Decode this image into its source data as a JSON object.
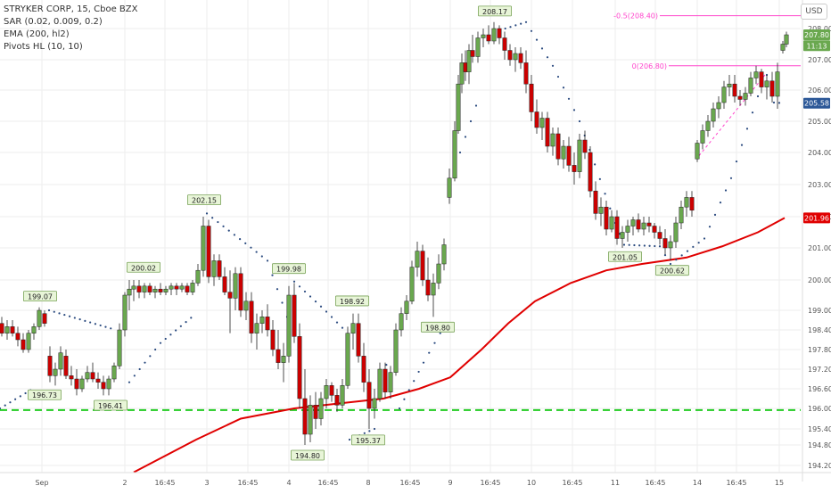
{
  "legend": {
    "symbol": "STRYKER CORP, 15, Cboe BZX",
    "sar": "SAR (0.02, 0.009, 0.2)",
    "ema": "EMA (200, hl2)",
    "pivots": "Pivots HL (10, 10)"
  },
  "currency_button": "USD",
  "colors": {
    "up": "#6aa84f",
    "down": "#cc0000",
    "ema": "#e00000",
    "sar": "#2a4a7f",
    "support": "#22cc22",
    "fib": "#ff44cc",
    "axis_text": "#555555",
    "grid": "#eeeeee"
  },
  "chart_data": {
    "type": "candlestick",
    "y_axis": {
      "ticks": [
        "194.20",
        "194.80",
        "195.40",
        "196.00",
        "196.60",
        "197.20",
        "197.80",
        "198.40",
        "199.00",
        "200.00",
        "201.00",
        "202.00",
        "203.00",
        "204.00",
        "205.00",
        "206.00",
        "207.00",
        "208.00"
      ],
      "ylim": [
        194.0,
        208.5
      ]
    },
    "x_axis": {
      "ticks": [
        "Sep",
        "2",
        "16:45",
        "3",
        "16:45",
        "4",
        "16:45",
        "8",
        "16:45",
        "9",
        "16:45",
        "10",
        "16:45",
        "11",
        "16:45",
        "14",
        "16:45",
        "15"
      ]
    },
    "price_badges": [
      {
        "label": "207.80",
        "value": 207.8,
        "type": "last"
      },
      {
        "label": "11:13",
        "value": 207.45,
        "type": "time"
      },
      {
        "label": "205.58",
        "value": 205.58,
        "type": "blue"
      },
      {
        "label": "201.96",
        "value": 201.96,
        "type": "ema"
      }
    ],
    "pivot_highs": [
      {
        "label": "199.07",
        "value": 199.07
      },
      {
        "label": "200.02",
        "value": 200.02
      },
      {
        "label": "202.15",
        "value": 202.15
      },
      {
        "label": "199.98",
        "value": 199.98
      },
      {
        "label": "198.92",
        "value": 198.92
      },
      {
        "label": "208.17",
        "value": 208.17
      }
    ],
    "pivot_lows": [
      {
        "label": "196.73",
        "value": 196.73
      },
      {
        "label": "196.41",
        "value": 196.41
      },
      {
        "label": "194.80",
        "value": 194.8
      },
      {
        "label": "195.37",
        "value": 195.37
      },
      {
        "label": "198.80",
        "value": 198.8
      },
      {
        "label": "201.05",
        "value": 201.05
      },
      {
        "label": "200.62",
        "value": 200.62
      }
    ],
    "fib_lines": [
      {
        "label": "-0.5(208.40)",
        "value": 208.4
      },
      {
        "label": "0(206.80)",
        "value": 206.8
      }
    ],
    "support_level": 195.95,
    "ema_series": [
      [
        150,
        194.0
      ],
      [
        220,
        195.0
      ],
      [
        270,
        195.7
      ],
      [
        330,
        196.0
      ],
      [
        380,
        196.15
      ],
      [
        430,
        196.3
      ],
      [
        470,
        196.6
      ],
      [
        505,
        196.95
      ],
      [
        540,
        197.8
      ],
      [
        570,
        198.6
      ],
      [
        600,
        199.3
      ],
      [
        640,
        199.9
      ],
      [
        680,
        200.3
      ],
      [
        720,
        200.5
      ],
      [
        770,
        200.7
      ],
      [
        810,
        201.05
      ],
      [
        850,
        201.5
      ],
      [
        880,
        201.96
      ]
    ],
    "sar_series": [
      [
        0,
        196.0
      ],
      [
        40,
        196.65
      ],
      [
        55,
        199.0
      ],
      [
        130,
        198.4
      ],
      [
        145,
        196.8
      ],
      [
        180,
        198.0
      ],
      [
        220,
        198.9
      ],
      [
        232,
        202.1
      ],
      [
        300,
        200.6
      ],
      [
        322,
        198.8
      ],
      [
        330,
        199.95
      ],
      [
        390,
        198.3
      ],
      [
        392,
        195.0
      ],
      [
        420,
        195.4
      ],
      [
        440,
        198.3
      ],
      [
        448,
        196.0
      ],
      [
        475,
        197.4
      ],
      [
        500,
        198.6
      ],
      [
        510,
        203.5
      ],
      [
        540,
        206.0
      ],
      [
        555,
        207.9
      ],
      [
        590,
        208.2
      ],
      [
        620,
        206.8
      ],
      [
        650,
        205.0
      ],
      [
        690,
        201.8
      ],
      [
        700,
        201.1
      ],
      [
        740,
        201.05
      ],
      [
        752,
        200.5
      ],
      [
        790,
        201.3
      ],
      [
        820,
        203.2
      ],
      [
        850,
        205.8
      ],
      [
        860,
        206.5
      ],
      [
        868,
        205.6
      ],
      [
        880,
        205.58
      ]
    ],
    "candles": [
      [
        2,
        198.6,
        198.8,
        198.2,
        198.3
      ],
      [
        8,
        198.3,
        198.7,
        198.1,
        198.5
      ],
      [
        14,
        198.5,
        198.7,
        198.2,
        198.3
      ],
      [
        20,
        198.3,
        198.5,
        197.9,
        198.1
      ],
      [
        26,
        198.1,
        198.3,
        197.7,
        197.8
      ],
      [
        32,
        197.8,
        198.4,
        197.7,
        198.3
      ],
      [
        38,
        198.3,
        198.6,
        198.1,
        198.5
      ],
      [
        44,
        198.5,
        199.1,
        198.4,
        199.0
      ],
      [
        50,
        198.9,
        199.0,
        198.5,
        198.6
      ],
      [
        56,
        197.6,
        197.9,
        196.8,
        197.0
      ],
      [
        62,
        197.0,
        197.4,
        196.7,
        197.2
      ],
      [
        68,
        197.2,
        197.9,
        197.0,
        197.7
      ],
      [
        74,
        197.6,
        197.8,
        196.9,
        197.0
      ],
      [
        80,
        197.0,
        197.3,
        196.7,
        196.9
      ],
      [
        86,
        196.9,
        197.2,
        196.4,
        196.6
      ],
      [
        92,
        196.6,
        197.0,
        196.5,
        196.9
      ],
      [
        98,
        196.9,
        197.3,
        196.8,
        197.1
      ],
      [
        104,
        197.1,
        197.4,
        196.8,
        196.9
      ],
      [
        110,
        196.9,
        197.1,
        196.6,
        196.8
      ],
      [
        116,
        196.8,
        197.0,
        196.4,
        196.6
      ],
      [
        122,
        196.6,
        197.0,
        196.4,
        196.9
      ],
      [
        128,
        196.9,
        197.4,
        196.8,
        197.3
      ],
      [
        134,
        197.3,
        198.6,
        197.2,
        198.4
      ],
      [
        140,
        198.4,
        199.6,
        198.2,
        199.5
      ],
      [
        145,
        199.5,
        200.0,
        199.0,
        199.7
      ],
      [
        150,
        199.7,
        200.0,
        199.3,
        199.8
      ],
      [
        156,
        199.8,
        200.0,
        199.4,
        199.6
      ],
      [
        162,
        199.6,
        199.9,
        199.4,
        199.8
      ],
      [
        168,
        199.8,
        199.9,
        199.5,
        199.6
      ],
      [
        174,
        199.6,
        199.8,
        199.4,
        199.7
      ],
      [
        180,
        199.7,
        199.9,
        199.5,
        199.6
      ],
      [
        186,
        199.6,
        199.8,
        199.5,
        199.7
      ],
      [
        192,
        199.7,
        199.9,
        199.5,
        199.8
      ],
      [
        198,
        199.8,
        199.9,
        199.5,
        199.7
      ],
      [
        204,
        199.7,
        199.9,
        199.6,
        199.8
      ],
      [
        210,
        199.8,
        199.9,
        199.5,
        199.6
      ],
      [
        216,
        199.6,
        200.0,
        199.5,
        199.9
      ],
      [
        222,
        199.9,
        200.5,
        199.8,
        200.3
      ],
      [
        228,
        200.3,
        202.0,
        200.1,
        201.7
      ],
      [
        234,
        201.7,
        201.9,
        199.9,
        200.1
      ],
      [
        240,
        200.1,
        200.8,
        199.8,
        200.6
      ],
      [
        246,
        200.6,
        200.8,
        200.0,
        200.1
      ],
      [
        252,
        200.1,
        200.4,
        199.5,
        199.6
      ],
      [
        258,
        199.6,
        200.3,
        198.3,
        199.4
      ],
      [
        264,
        199.4,
        200.4,
        199.0,
        200.2
      ],
      [
        270,
        200.2,
        200.4,
        198.8,
        199.0
      ],
      [
        276,
        199.0,
        199.6,
        198.7,
        199.3
      ],
      [
        282,
        199.3,
        199.6,
        198.0,
        198.3
      ],
      [
        288,
        198.3,
        198.9,
        197.8,
        198.6
      ],
      [
        294,
        198.6,
        199.0,
        198.3,
        198.8
      ],
      [
        300,
        198.8,
        199.2,
        198.2,
        198.4
      ],
      [
        306,
        198.4,
        198.7,
        197.6,
        197.8
      ],
      [
        312,
        197.8,
        198.4,
        197.2,
        197.4
      ],
      [
        318,
        197.4,
        198.0,
        196.8,
        197.6
      ],
      [
        324,
        197.6,
        199.8,
        197.4,
        199.5
      ],
      [
        330,
        199.5,
        199.9,
        198.0,
        198.2
      ],
      [
        336,
        198.2,
        198.6,
        196.0,
        196.3
      ],
      [
        342,
        196.3,
        197.2,
        194.8,
        195.2
      ],
      [
        348,
        195.2,
        196.4,
        194.9,
        196.1
      ],
      [
        354,
        196.1,
        196.5,
        195.4,
        195.7
      ],
      [
        360,
        195.7,
        196.5,
        195.5,
        196.3
      ],
      [
        366,
        196.3,
        196.9,
        196.0,
        196.7
      ],
      [
        372,
        196.7,
        196.8,
        196.2,
        196.4
      ],
      [
        378,
        196.4,
        196.6,
        195.9,
        196.1
      ],
      [
        384,
        196.1,
        196.9,
        196.0,
        196.7
      ],
      [
        390,
        196.7,
        198.5,
        196.6,
        198.3
      ],
      [
        396,
        198.3,
        198.9,
        197.8,
        198.6
      ],
      [
        402,
        198.6,
        198.9,
        197.4,
        197.6
      ],
      [
        408,
        197.6,
        198.0,
        196.5,
        196.8
      ],
      [
        414,
        196.8,
        197.2,
        195.4,
        196.0
      ],
      [
        420,
        196.0,
        196.6,
        195.7,
        196.3
      ],
      [
        426,
        196.3,
        197.4,
        196.2,
        197.2
      ],
      [
        432,
        197.2,
        197.4,
        196.3,
        196.5
      ],
      [
        438,
        196.5,
        197.3,
        196.3,
        197.1
      ],
      [
        444,
        197.1,
        198.6,
        197.0,
        198.4
      ],
      [
        450,
        198.4,
        199.1,
        198.2,
        198.9
      ],
      [
        456,
        198.9,
        199.5,
        198.7,
        199.3
      ],
      [
        462,
        199.3,
        200.6,
        199.2,
        200.4
      ],
      [
        468,
        200.4,
        201.2,
        200.1,
        200.9
      ],
      [
        474,
        200.9,
        201.1,
        199.8,
        200.0
      ],
      [
        480,
        200.0,
        200.7,
        199.3,
        199.5
      ],
      [
        486,
        199.5,
        200.2,
        198.8,
        199.9
      ],
      [
        492,
        199.9,
        200.8,
        199.7,
        200.5
      ],
      [
        498,
        200.5,
        201.3,
        200.3,
        201.1
      ],
      [
        504,
        202.6,
        203.5,
        202.4,
        203.2
      ],
      [
        510,
        203.2,
        205.0,
        203.1,
        204.7
      ],
      [
        514,
        204.7,
        206.5,
        204.6,
        206.2
      ],
      [
        518,
        206.2,
        207.2,
        205.9,
        206.9
      ],
      [
        522,
        206.9,
        207.3,
        206.3,
        206.6
      ],
      [
        526,
        206.6,
        207.5,
        206.2,
        207.3
      ],
      [
        530,
        207.3,
        207.8,
        206.9,
        207.1
      ],
      [
        536,
        207.1,
        207.9,
        206.9,
        207.7
      ],
      [
        542,
        207.7,
        208.0,
        207.4,
        207.8
      ],
      [
        548,
        207.8,
        208.1,
        207.5,
        207.6
      ],
      [
        554,
        207.6,
        208.2,
        207.5,
        208.0
      ],
      [
        560,
        208.0,
        208.1,
        207.5,
        207.7
      ],
      [
        566,
        207.7,
        207.9,
        207.0,
        207.3
      ],
      [
        572,
        207.3,
        207.5,
        206.8,
        207.0
      ],
      [
        578,
        207.0,
        207.4,
        206.6,
        207.2
      ],
      [
        584,
        207.2,
        207.4,
        206.7,
        206.9
      ],
      [
        590,
        206.9,
        207.3,
        205.9,
        206.2
      ],
      [
        596,
        206.2,
        206.5,
        205.0,
        205.3
      ],
      [
        602,
        205.3,
        205.7,
        204.6,
        204.8
      ],
      [
        608,
        204.8,
        205.3,
        204.4,
        205.1
      ],
      [
        614,
        205.1,
        205.3,
        204.0,
        204.2
      ],
      [
        620,
        204.2,
        204.8,
        203.9,
        204.6
      ],
      [
        626,
        204.6,
        204.8,
        203.6,
        203.8
      ],
      [
        632,
        203.8,
        204.4,
        203.5,
        204.2
      ],
      [
        638,
        204.2,
        204.5,
        203.4,
        203.6
      ],
      [
        644,
        203.6,
        204.0,
        203.0,
        203.4
      ],
      [
        650,
        203.4,
        204.6,
        203.2,
        204.4
      ],
      [
        656,
        204.4,
        204.7,
        203.8,
        204.0
      ],
      [
        662,
        204.0,
        204.2,
        202.6,
        202.8
      ],
      [
        668,
        202.8,
        203.1,
        201.9,
        202.1
      ],
      [
        674,
        202.1,
        202.6,
        201.7,
        202.3
      ],
      [
        680,
        202.3,
        202.5,
        201.4,
        201.6
      ],
      [
        686,
        201.6,
        202.2,
        201.5,
        202.0
      ],
      [
        692,
        202.0,
        202.2,
        201.1,
        201.3
      ],
      [
        698,
        201.3,
        201.7,
        201.0,
        201.5
      ],
      [
        704,
        201.5,
        201.9,
        201.2,
        201.7
      ],
      [
        710,
        201.7,
        202.0,
        201.4,
        201.9
      ],
      [
        716,
        201.9,
        202.1,
        201.5,
        201.6
      ],
      [
        722,
        201.6,
        202.0,
        201.4,
        201.8
      ],
      [
        728,
        201.8,
        202.0,
        201.5,
        201.7
      ],
      [
        734,
        201.7,
        201.8,
        201.3,
        201.5
      ],
      [
        740,
        201.5,
        201.7,
        201.1,
        201.3
      ],
      [
        746,
        201.3,
        201.6,
        200.8,
        201.0
      ],
      [
        752,
        201.0,
        201.4,
        200.6,
        201.2
      ],
      [
        758,
        201.2,
        202.0,
        201.0,
        201.8
      ],
      [
        764,
        201.8,
        202.5,
        201.6,
        202.3
      ],
      [
        770,
        202.3,
        202.8,
        202.0,
        202.6
      ],
      [
        776,
        202.6,
        202.8,
        202.0,
        202.2
      ],
      [
        782,
        203.8,
        204.4,
        203.7,
        204.3
      ],
      [
        788,
        204.3,
        204.9,
        204.1,
        204.7
      ],
      [
        794,
        204.7,
        205.2,
        204.5,
        205.0
      ],
      [
        800,
        205.0,
        205.6,
        204.8,
        205.4
      ],
      [
        806,
        205.4,
        205.8,
        205.1,
        205.6
      ],
      [
        812,
        205.6,
        206.3,
        205.4,
        206.1
      ],
      [
        818,
        206.1,
        206.5,
        205.8,
        206.2
      ],
      [
        824,
        206.2,
        206.5,
        205.6,
        205.8
      ],
      [
        830,
        205.8,
        206.0,
        205.5,
        205.7
      ],
      [
        836,
        205.7,
        206.1,
        205.5,
        205.9
      ],
      [
        842,
        205.9,
        206.6,
        205.8,
        206.4
      ],
      [
        848,
        206.4,
        206.8,
        206.2,
        206.6
      ],
      [
        854,
        206.6,
        206.7,
        205.9,
        206.1
      ],
      [
        860,
        206.1,
        206.5,
        205.7,
        206.3
      ],
      [
        866,
        206.3,
        206.6,
        205.6,
        205.8
      ],
      [
        872,
        205.8,
        206.9,
        205.4,
        206.6
      ],
      [
        878,
        207.3,
        207.6,
        207.2,
        207.5
      ],
      [
        882,
        207.5,
        207.9,
        207.4,
        207.8
      ]
    ]
  }
}
